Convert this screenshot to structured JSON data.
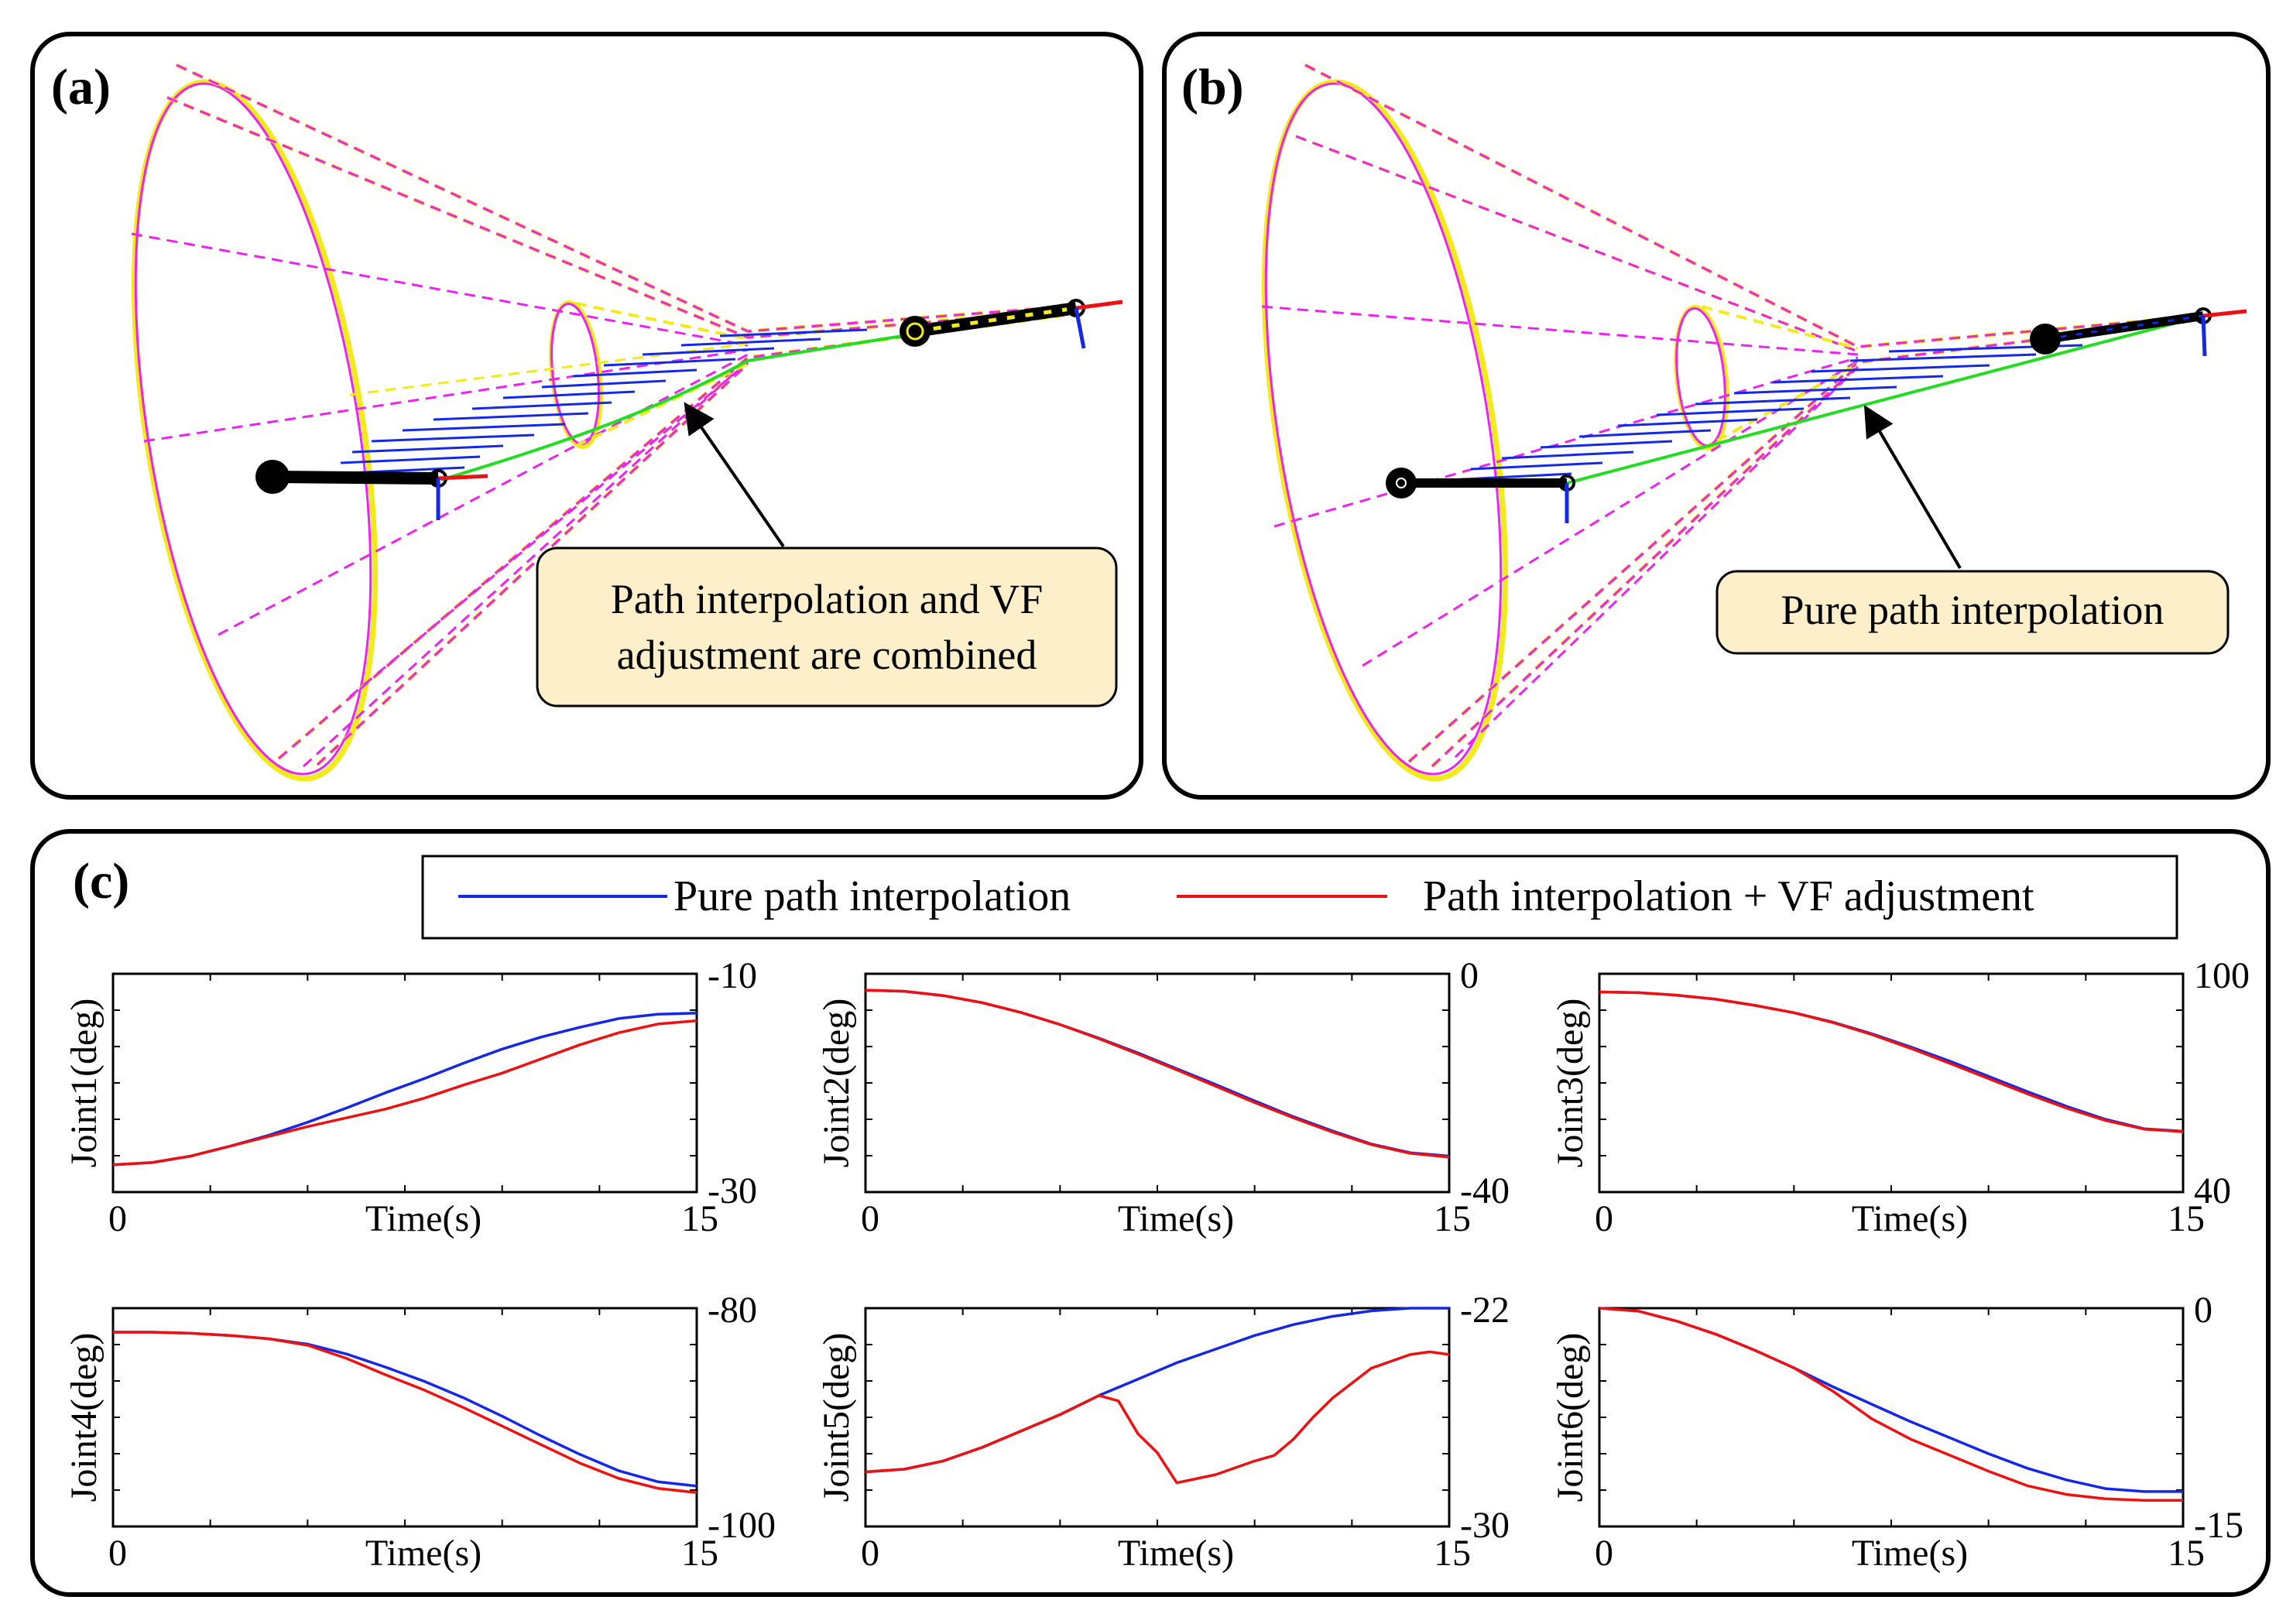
{
  "panels": {
    "a": {
      "label": "(a)",
      "callout_line1": "Path interpolation and VF",
      "callout_line2": "adjustment are combined"
    },
    "b": {
      "label": "(b)",
      "callout": "Pure path interpolation"
    },
    "c": {
      "label": "(c)"
    }
  },
  "colors": {
    "blue": "#1428e6",
    "red": "#ee1111",
    "magenta": "#ee22ee",
    "yellow": "#f2ea1a",
    "green": "#22dd22",
    "callout_fill": "#fcefc9"
  },
  "legend": {
    "series1": "Pure path interpolation",
    "series2": "Path interpolation + VF adjustment"
  },
  "chart_data": [
    {
      "type": "line",
      "name": "joint1",
      "xlabel": "Time(s)",
      "ylabel": "Joint1(deg)",
      "xlim": [
        0,
        15
      ],
      "ylim": [
        -30,
        -10
      ],
      "x_ticks": [
        "0",
        "15"
      ],
      "y_ticks": [
        "-10",
        "-30"
      ],
      "series": [
        {
          "name": "Pure path interpolation",
          "x": [
            0,
            1,
            2,
            3,
            4,
            5,
            6,
            7,
            8,
            9,
            10,
            11,
            12,
            13,
            14,
            15
          ],
          "values": [
            -27.5,
            -27.3,
            -26.7,
            -25.8,
            -24.8,
            -23.6,
            -22.3,
            -20.9,
            -19.6,
            -18.2,
            -16.9,
            -15.8,
            -14.9,
            -14.1,
            -13.7,
            -13.6
          ]
        },
        {
          "name": "Path interpolation + VF adjustment",
          "x": [
            0,
            1,
            2,
            3,
            4,
            5,
            6,
            7,
            8,
            9,
            10,
            11,
            12,
            13,
            14,
            15
          ],
          "values": [
            -27.5,
            -27.3,
            -26.7,
            -25.8,
            -24.9,
            -24.0,
            -23.2,
            -22.4,
            -21.4,
            -20.2,
            -19.1,
            -17.8,
            -16.5,
            -15.4,
            -14.6,
            -14.3
          ]
        }
      ]
    },
    {
      "type": "line",
      "name": "joint2",
      "xlabel": "Time(s)",
      "ylabel": "Joint2(deg)",
      "xlim": [
        0,
        15
      ],
      "ylim": [
        -40,
        0
      ],
      "x_ticks": [
        "0",
        "15"
      ],
      "y_ticks": [
        "0",
        "-40"
      ],
      "series": [
        {
          "name": "Pure path interpolation",
          "x": [
            0,
            1,
            2,
            3,
            4,
            5,
            6,
            7,
            8,
            9,
            10,
            11,
            12,
            13,
            14,
            15
          ],
          "values": [
            -3.0,
            -3.2,
            -4.0,
            -5.3,
            -7.1,
            -9.3,
            -11.8,
            -14.5,
            -17.4,
            -20.3,
            -23.3,
            -26.2,
            -28.8,
            -31.2,
            -32.8,
            -33.4
          ]
        },
        {
          "name": "Path interpolation + VF adjustment",
          "x": [
            0,
            1,
            2,
            3,
            4,
            5,
            6,
            7,
            8,
            9,
            10,
            11,
            12,
            13,
            14,
            15
          ],
          "values": [
            -3.0,
            -3.2,
            -4.0,
            -5.3,
            -7.1,
            -9.3,
            -11.9,
            -14.7,
            -17.6,
            -20.6,
            -23.6,
            -26.4,
            -29.0,
            -31.3,
            -32.9,
            -33.6
          ]
        }
      ]
    },
    {
      "type": "line",
      "name": "joint3",
      "xlabel": "Time(s)",
      "ylabel": "Joint3(deg)",
      "xlim": [
        0,
        15
      ],
      "ylim": [
        40,
        100
      ],
      "x_ticks": [
        "0",
        "15"
      ],
      "y_ticks": [
        "100",
        "40"
      ],
      "series": [
        {
          "name": "Pure path interpolation",
          "x": [
            0,
            1,
            2,
            3,
            4,
            5,
            6,
            7,
            8,
            9,
            10,
            11,
            12,
            13,
            14,
            15
          ],
          "values": [
            95.0,
            94.8,
            94.1,
            93.0,
            91.3,
            89.3,
            86.7,
            83.5,
            79.9,
            76.0,
            71.8,
            67.6,
            63.6,
            60.0,
            57.4,
            56.7
          ]
        },
        {
          "name": "Path interpolation + VF adjustment",
          "x": [
            0,
            1,
            2,
            3,
            4,
            5,
            6,
            7,
            8,
            9,
            10,
            11,
            12,
            13,
            14,
            15
          ],
          "values": [
            95.0,
            94.8,
            94.1,
            93.0,
            91.3,
            89.3,
            86.6,
            83.3,
            79.5,
            75.4,
            71.2,
            67.0,
            63.1,
            59.7,
            57.3,
            56.6
          ]
        }
      ]
    },
    {
      "type": "line",
      "name": "joint4",
      "xlabel": "Time(s)",
      "ylabel": "Joint4(deg)",
      "xlim": [
        0,
        15
      ],
      "ylim": [
        -100,
        -80
      ],
      "x_ticks": [
        "0",
        "15"
      ],
      "y_ticks": [
        "-80",
        "-100"
      ],
      "series": [
        {
          "name": "Pure path interpolation",
          "x": [
            0,
            1,
            2,
            3,
            4,
            5,
            6,
            7,
            8,
            9,
            10,
            11,
            12,
            13,
            14,
            15
          ],
          "values": [
            -82.2,
            -82.2,
            -82.3,
            -82.5,
            -82.8,
            -83.3,
            -84.2,
            -85.4,
            -86.7,
            -88.2,
            -89.9,
            -91.7,
            -93.4,
            -94.9,
            -95.9,
            -96.3
          ]
        },
        {
          "name": "Path interpolation + VF adjustment",
          "x": [
            0,
            1,
            2,
            3,
            4,
            5,
            6,
            7,
            8,
            9,
            10,
            11,
            12,
            13,
            14,
            15
          ],
          "values": [
            -82.2,
            -82.2,
            -82.3,
            -82.5,
            -82.8,
            -83.4,
            -84.6,
            -86.1,
            -87.5,
            -89.1,
            -90.8,
            -92.5,
            -94.2,
            -95.6,
            -96.5,
            -96.9
          ]
        }
      ]
    },
    {
      "type": "line",
      "name": "joint5",
      "xlabel": "Time(s)",
      "ylabel": "Joint5(deg)",
      "xlim": [
        0,
        15
      ],
      "ylim": [
        -30,
        -22
      ],
      "x_ticks": [
        "0",
        "15"
      ],
      "y_ticks": [
        "-22",
        "-30"
      ],
      "series": [
        {
          "name": "Pure path interpolation",
          "x": [
            0,
            1,
            2,
            3,
            4,
            5,
            6,
            7,
            8,
            9,
            10,
            11,
            12,
            13,
            14,
            15
          ],
          "values": [
            -28.0,
            -27.9,
            -27.6,
            -27.1,
            -26.5,
            -25.9,
            -25.2,
            -24.6,
            -24.0,
            -23.5,
            -23.0,
            -22.6,
            -22.3,
            -22.1,
            -22.0,
            -22.0
          ]
        },
        {
          "name": "Path interpolation + VF adjustment",
          "x": [
            0,
            1,
            2,
            3,
            4,
            5,
            6,
            6.5,
            7,
            7.5,
            8,
            9,
            10,
            10.5,
            11,
            11.5,
            12,
            13,
            14,
            14.5,
            15
          ],
          "values": [
            -28.0,
            -27.9,
            -27.6,
            -27.1,
            -26.5,
            -25.9,
            -25.2,
            -25.4,
            -26.6,
            -27.3,
            -28.4,
            -28.1,
            -27.6,
            -27.4,
            -26.8,
            -26.0,
            -25.3,
            -24.2,
            -23.7,
            -23.6,
            -23.7
          ]
        }
      ]
    },
    {
      "type": "line",
      "name": "joint6",
      "xlabel": "Time(s)",
      "ylabel": "Joint6(deg)",
      "xlim": [
        0,
        15
      ],
      "ylim": [
        -15,
        0
      ],
      "x_ticks": [
        "0",
        "15"
      ],
      "y_ticks": [
        "0",
        "-15"
      ],
      "series": [
        {
          "name": "Pure path interpolation",
          "x": [
            0,
            1,
            2,
            3,
            4,
            5,
            6,
            7,
            8,
            9,
            10,
            11,
            12,
            13,
            14,
            15
          ],
          "values": [
            0.0,
            -0.2,
            -0.9,
            -1.8,
            -2.9,
            -4.1,
            -5.4,
            -6.6,
            -7.8,
            -8.9,
            -10.0,
            -11.0,
            -11.8,
            -12.4,
            -12.6,
            -12.6
          ]
        },
        {
          "name": "Path interpolation + VF adjustment",
          "x": [
            0,
            1,
            2,
            3,
            4,
            5,
            6,
            7,
            8,
            9,
            10,
            11,
            12,
            13,
            14,
            15
          ],
          "values": [
            0.0,
            -0.2,
            -0.9,
            -1.8,
            -2.9,
            -4.1,
            -5.7,
            -7.6,
            -9.0,
            -10.1,
            -11.2,
            -12.2,
            -12.8,
            -13.1,
            -13.2,
            -13.2
          ]
        }
      ]
    }
  ]
}
